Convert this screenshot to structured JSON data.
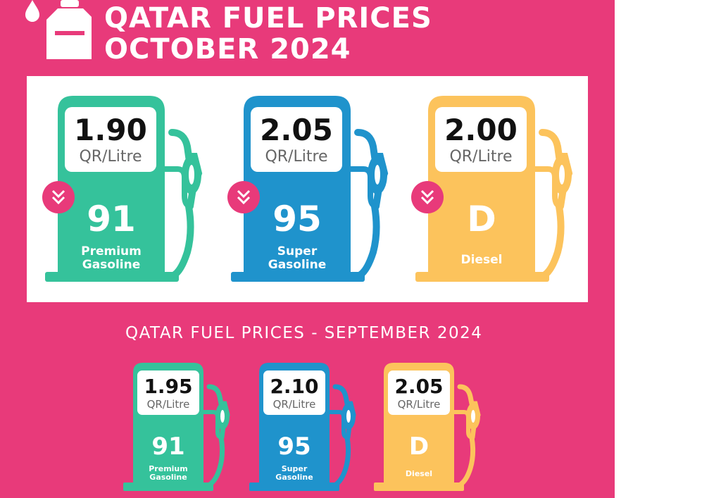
{
  "header": {
    "title_line1": "QATAR FUEL PRICES",
    "title_line2": "OCTOBER 2024",
    "icon": "fuel-can-icon"
  },
  "colors": {
    "background": "#e83a7a",
    "premium": "#35c29b",
    "super": "#1f93cc",
    "diesel": "#fcc35c"
  },
  "october": [
    {
      "price": "1.90",
      "unit": "QR/Litre",
      "grade": "91",
      "desc1": "Premium",
      "desc2": "Gasoline",
      "trend": "down"
    },
    {
      "price": "2.05",
      "unit": "QR/Litre",
      "grade": "95",
      "desc1": "Super",
      "desc2": "Gasoline",
      "trend": "down"
    },
    {
      "price": "2.00",
      "unit": "QR/Litre",
      "grade": "D",
      "desc1": "Diesel",
      "desc2": "",
      "trend": "down"
    }
  ],
  "september": {
    "heading": "QATAR FUEL PRICES - SEPTEMBER 2024",
    "pumps": [
      {
        "price": "1.95",
        "unit": "QR/Litre",
        "grade": "91",
        "desc1": "Premium",
        "desc2": "Gasoline"
      },
      {
        "price": "2.10",
        "unit": "QR/Litre",
        "grade": "95",
        "desc1": "Super",
        "desc2": "Gasoline"
      },
      {
        "price": "2.05",
        "unit": "QR/Litre",
        "grade": "D",
        "desc1": "Diesel",
        "desc2": ""
      }
    ]
  }
}
